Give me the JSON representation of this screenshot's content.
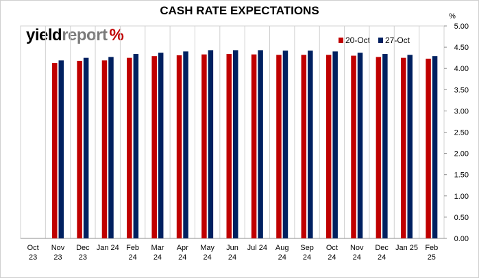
{
  "logo": {
    "part1": "yield",
    "part2": "report",
    "symbol": "%"
  },
  "chart_data": {
    "type": "bar",
    "title": "CASH RATE EXPECTATIONS",
    "y_unit_label": "%",
    "ylim": [
      0,
      5
    ],
    "ytick_step": 0.5,
    "ytick_labels": [
      "0.00",
      "0.50",
      "1.00",
      "1.50",
      "2.00",
      "2.50",
      "3.00",
      "3.50",
      "4.00",
      "4.50",
      "5.00"
    ],
    "y_axis_position": "right",
    "grid": "vertical separators between categories",
    "legend_position": "top-right",
    "categories": [
      [
        "Oct",
        "23"
      ],
      [
        "Nov",
        "23"
      ],
      [
        "Dec",
        "23"
      ],
      [
        "Jan 24",
        ""
      ],
      [
        "Feb",
        "24"
      ],
      [
        "Mar",
        "24"
      ],
      [
        "Apr",
        "24"
      ],
      [
        "May",
        "24"
      ],
      [
        "Jun",
        "24"
      ],
      [
        "Jul 24",
        ""
      ],
      [
        "Aug",
        "24"
      ],
      [
        "Sep",
        "24"
      ],
      [
        "Oct",
        "24"
      ],
      [
        "Nov",
        "24"
      ],
      [
        "Dec",
        "24"
      ],
      [
        "Jan 25",
        ""
      ],
      [
        "Feb",
        "25"
      ]
    ],
    "series": [
      {
        "name": "20-Oct",
        "color": "#c00000",
        "values": [
          null,
          4.13,
          4.18,
          4.19,
          4.25,
          4.29,
          4.31,
          4.33,
          4.34,
          4.33,
          4.32,
          4.32,
          4.32,
          4.3,
          4.27,
          4.25,
          4.23
        ]
      },
      {
        "name": "27-Oct",
        "color": "#002060",
        "values": [
          null,
          4.19,
          4.25,
          4.27,
          4.34,
          4.37,
          4.4,
          4.43,
          4.43,
          4.43,
          4.42,
          4.42,
          4.4,
          4.37,
          4.34,
          4.32,
          4.29
        ]
      }
    ]
  }
}
